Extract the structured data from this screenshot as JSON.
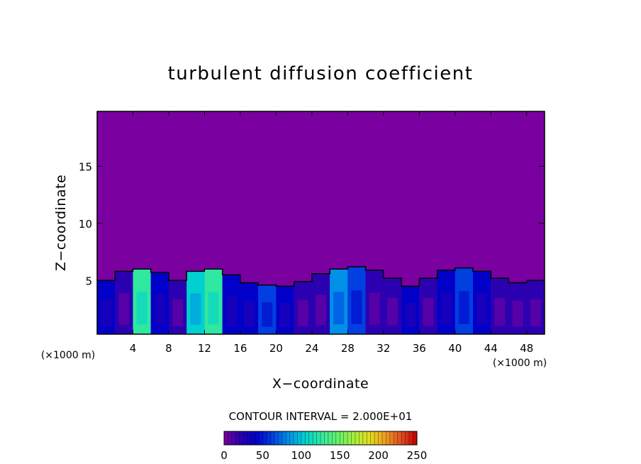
{
  "chart_data": {
    "type": "heatmap",
    "title": "turbulent diffusion coefficient",
    "xlabel": "X−coordinate",
    "ylabel": "Z−coordinate",
    "x_unit_left": "(×1000 m)",
    "x_unit_right": "(×1000 m)",
    "xlim": [
      0,
      50
    ],
    "ylim": [
      0.3,
      19.8
    ],
    "x_ticks": [
      4,
      8,
      12,
      16,
      20,
      24,
      28,
      32,
      36,
      40,
      44,
      48
    ],
    "x_tick_labels": [
      "4",
      "8",
      "12",
      "16",
      "20",
      "24",
      "28",
      "32",
      "36",
      "40",
      "44",
      "48"
    ],
    "y_ticks": [
      5,
      10,
      15
    ],
    "y_tick_labels": [
      "5",
      "10",
      "15"
    ],
    "background_value": 0,
    "cells": [
      {
        "x": 1.0,
        "top": 5.0,
        "value": 40
      },
      {
        "x": 3.0,
        "top": 5.8,
        "value": 30
      },
      {
        "x": 5.0,
        "top": 6.0,
        "value": 120
      },
      {
        "x": 7.0,
        "top": 5.7,
        "value": 40
      },
      {
        "x": 9.0,
        "top": 5.0,
        "value": 30
      },
      {
        "x": 11.0,
        "top": 5.8,
        "value": 110
      },
      {
        "x": 13.0,
        "top": 6.0,
        "value": 130
      },
      {
        "x": 15.0,
        "top": 5.5,
        "value": 40
      },
      {
        "x": 17.0,
        "top": 4.8,
        "value": 40
      },
      {
        "x": 19.0,
        "top": 4.6,
        "value": 60
      },
      {
        "x": 21.0,
        "top": 4.5,
        "value": 40
      },
      {
        "x": 23.0,
        "top": 4.9,
        "value": 30
      },
      {
        "x": 25.0,
        "top": 5.6,
        "value": 30
      },
      {
        "x": 27.0,
        "top": 6.0,
        "value": 80
      },
      {
        "x": 29.0,
        "top": 6.2,
        "value": 60
      },
      {
        "x": 31.0,
        "top": 5.9,
        "value": 30
      },
      {
        "x": 33.0,
        "top": 5.2,
        "value": 30
      },
      {
        "x": 35.0,
        "top": 4.5,
        "value": 40
      },
      {
        "x": 37.0,
        "top": 5.2,
        "value": 30
      },
      {
        "x": 39.0,
        "top": 5.9,
        "value": 40
      },
      {
        "x": 41.0,
        "top": 6.1,
        "value": 70
      },
      {
        "x": 43.0,
        "top": 5.8,
        "value": 40
      },
      {
        "x": 45.0,
        "top": 5.2,
        "value": 30
      },
      {
        "x": 47.0,
        "top": 4.8,
        "value": 30
      },
      {
        "x": 49.0,
        "top": 5.0,
        "value": 30
      }
    ],
    "contour_interval_text": "CONTOUR INTERVAL =  2.000E+01",
    "colorbar": {
      "min": 0,
      "max": 250,
      "ticks": [
        0,
        50,
        100,
        150,
        200,
        250
      ],
      "tick_labels": [
        "0",
        "50",
        "100",
        "150",
        "200",
        "250"
      ],
      "colors": [
        "#7a00a0",
        "#2a00b0",
        "#0000c8",
        "#0040e0",
        "#0090e8",
        "#00d0d0",
        "#30e8a0",
        "#60f070",
        "#a0f040",
        "#e0e020",
        "#f0a020",
        "#e05020",
        "#c00000"
      ]
    },
    "grid": false,
    "legend": "colorbar-bottom"
  }
}
